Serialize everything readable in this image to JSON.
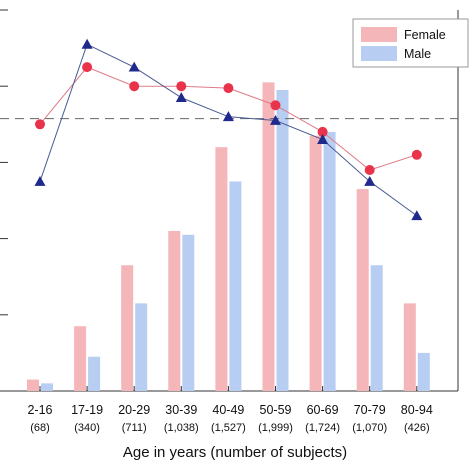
{
  "chart_data": {
    "type": "bar",
    "categories": [
      "2-16",
      "17-19",
      "20-29",
      "30-39",
      "40-49",
      "50-59",
      "60-69",
      "70-79",
      "80-94"
    ],
    "counts": [
      "(68)",
      "(340)",
      "(711)",
      "(1,038)",
      "(1,527)",
      "(1,999)",
      "(1,724)",
      "(1,070)",
      "(426)"
    ],
    "xlabel": "Age in years (number of subjects)",
    "ylabel": "",
    "title": "",
    "ylim": [
      0,
      100
    ],
    "series": [
      {
        "name": "Female",
        "kind": "bar",
        "color": "#f4b6b8",
        "values": [
          3,
          17,
          33,
          42,
          64,
          81,
          67,
          53,
          23
        ]
      },
      {
        "name": "Male",
        "kind": "bar",
        "color": "#b7cdf1",
        "values": [
          2,
          9,
          23,
          41,
          55,
          79,
          68,
          33,
          10
        ]
      }
    ],
    "lines": [
      {
        "legend": false,
        "marker": "circle",
        "color": "#e8334a",
        "line_color": "#e07b88",
        "values": [
          70,
          85,
          80,
          80,
          79.5,
          75,
          68,
          58,
          62
        ]
      },
      {
        "legend": false,
        "marker": "triangle",
        "color": "#1f2a8c",
        "line_color": "#4a5a94",
        "values": [
          55,
          91,
          85,
          77,
          72,
          71,
          66,
          55,
          46
        ]
      }
    ],
    "reference_line": {
      "value": 71.5,
      "style": "dashed",
      "color": "#666666"
    },
    "legend_position": "top-right",
    "grid": false
  }
}
